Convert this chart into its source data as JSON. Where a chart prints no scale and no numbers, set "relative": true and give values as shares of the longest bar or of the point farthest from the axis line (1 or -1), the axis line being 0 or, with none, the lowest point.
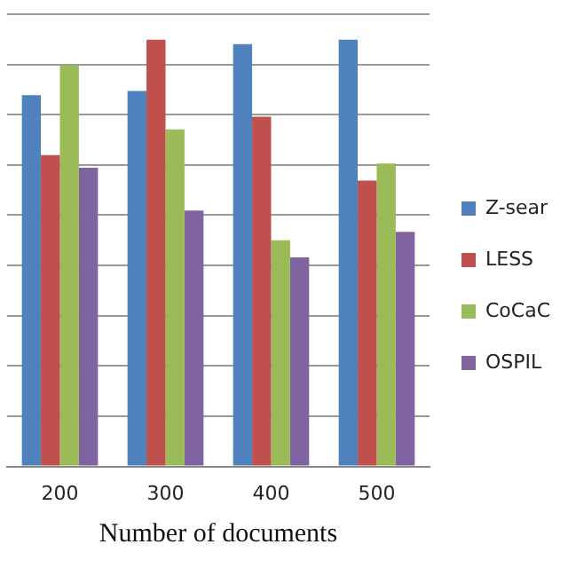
{
  "chart_data": {
    "type": "bar",
    "xlabel": "Number of documents",
    "categories": [
      "200",
      "300",
      "400",
      "500"
    ],
    "relative": true,
    "grid": "y",
    "legend": "right",
    "series": [
      {
        "name": "Z-sear",
        "color": "#4f81bd",
        "values": [
          0.87,
          0.88,
          0.99,
          1
        ]
      },
      {
        "name": "LESS",
        "color": "#c0504d",
        "values": [
          0.73,
          1,
          0.82,
          0.67
        ]
      },
      {
        "name": "CoCaC",
        "color": "#9bbb59",
        "values": [
          0.94,
          0.79,
          0.53,
          0.71
        ]
      },
      {
        "name": "OSPIL",
        "color": "#8064a2",
        "values": [
          0.7,
          0.6,
          0.49,
          0.55
        ]
      }
    ]
  }
}
